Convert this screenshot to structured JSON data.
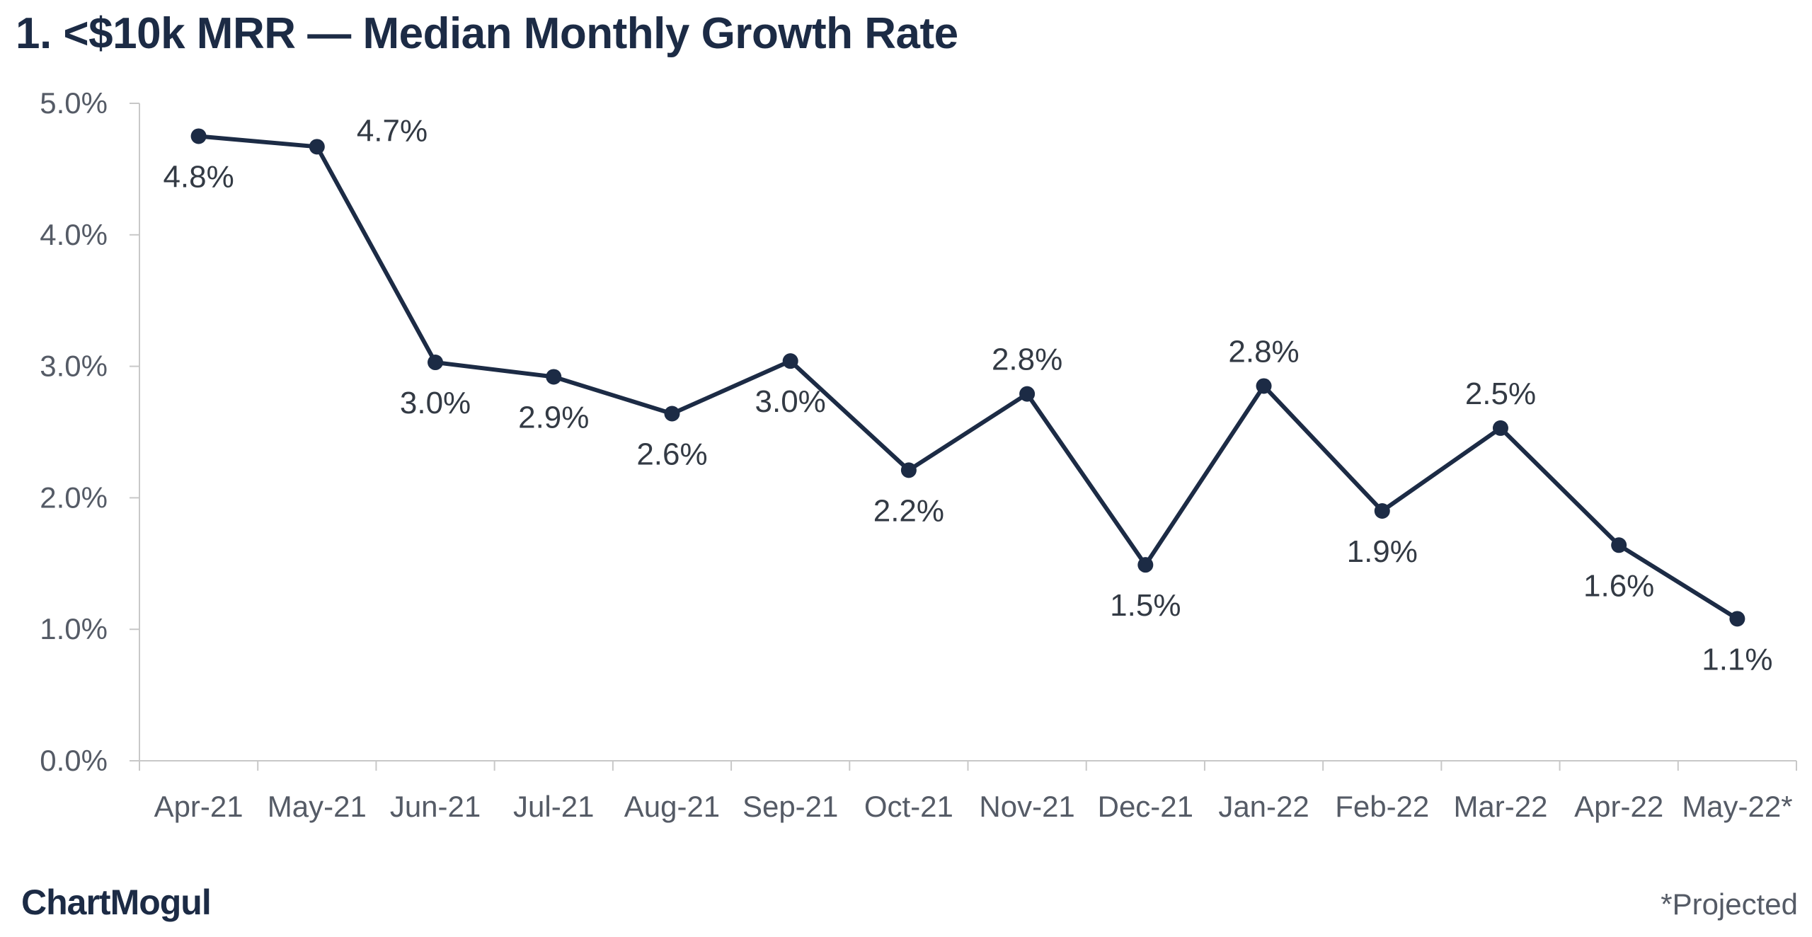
{
  "chart_data": {
    "type": "line",
    "title": "1. <$10k MRR — Median Monthly Growth Rate",
    "xlabel": "",
    "ylabel": "",
    "categories": [
      "Apr-21",
      "May-21",
      "Jun-21",
      "Jul-21",
      "Aug-21",
      "Sep-21",
      "Oct-21",
      "Nov-21",
      "Dec-21",
      "Jan-22",
      "Feb-22",
      "Mar-22",
      "Apr-22",
      "May-22*"
    ],
    "values": [
      4.75,
      4.67,
      3.03,
      2.92,
      2.64,
      3.04,
      2.21,
      2.79,
      1.49,
      2.85,
      1.9,
      2.53,
      1.64,
      1.08
    ],
    "data_labels": [
      "4.8%",
      "4.7%",
      "3.0%",
      "2.9%",
      "2.6%",
      "3.0%",
      "2.2%",
      "2.8%",
      "1.5%",
      "2.8%",
      "1.9%",
      "2.5%",
      "1.6%",
      "1.1%"
    ],
    "label_positions": [
      "below",
      "right",
      "below",
      "below",
      "below",
      "below",
      "below",
      "above",
      "below",
      "above",
      "below",
      "above",
      "below",
      "below"
    ],
    "ylim": [
      0,
      5
    ],
    "y_ticks": [
      0,
      1,
      2,
      3,
      4,
      5
    ],
    "y_tick_labels": [
      "0.0%",
      "1.0%",
      "2.0%",
      "3.0%",
      "4.0%",
      "5.0%"
    ],
    "grid": false,
    "legend": "none",
    "line_color": "#1c2b45",
    "marker_color": "#1c2b45"
  },
  "brand": {
    "logo_text": "ChartMogul"
  },
  "footnote": "*Projected",
  "colors": {
    "title": "#1c2b45",
    "axis": "#c8c8c8",
    "tick_text": "#555b66",
    "label_text": "#333a44"
  }
}
